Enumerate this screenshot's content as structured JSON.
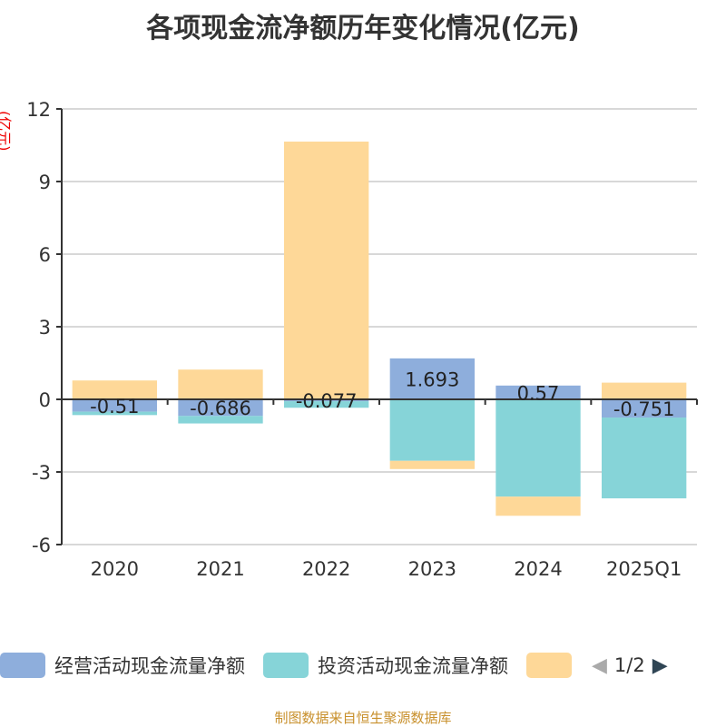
{
  "chart_data": {
    "type": "bar",
    "title": "各项现金流净额历年变化情况(亿元)",
    "ylabel": "(亿元)",
    "categories": [
      "2020",
      "2021",
      "2022",
      "2023",
      "2024",
      "2025Q1"
    ],
    "ylim": [
      -6,
      12
    ],
    "yticks": [
      12,
      9,
      6,
      3,
      0,
      -3,
      -6
    ],
    "stacked": true,
    "series": [
      {
        "name": "经营活动现金流量净额",
        "color": "#8eaedc",
        "values": [
          -0.51,
          -0.686,
          -0.077,
          1.693,
          0.57,
          -0.751
        ],
        "labels": [
          "-0.51",
          "-0.686",
          "-0.077",
          "1.693",
          "0.57",
          "-0.751"
        ]
      },
      {
        "name": "投资活动现金流量净额",
        "color": "#86d4d8",
        "values": [
          -0.14,
          -0.31,
          -0.27,
          -2.54,
          -4.02,
          -3.34
        ]
      },
      {
        "name": "",
        "color": "#fed898",
        "values": [
          0.78,
          1.23,
          10.65,
          -0.34,
          -0.79,
          0.69
        ]
      }
    ],
    "legend_position": "bottom"
  },
  "legend": {
    "page": "1/2"
  },
  "footer": "制图数据来自恒生聚源数据库"
}
